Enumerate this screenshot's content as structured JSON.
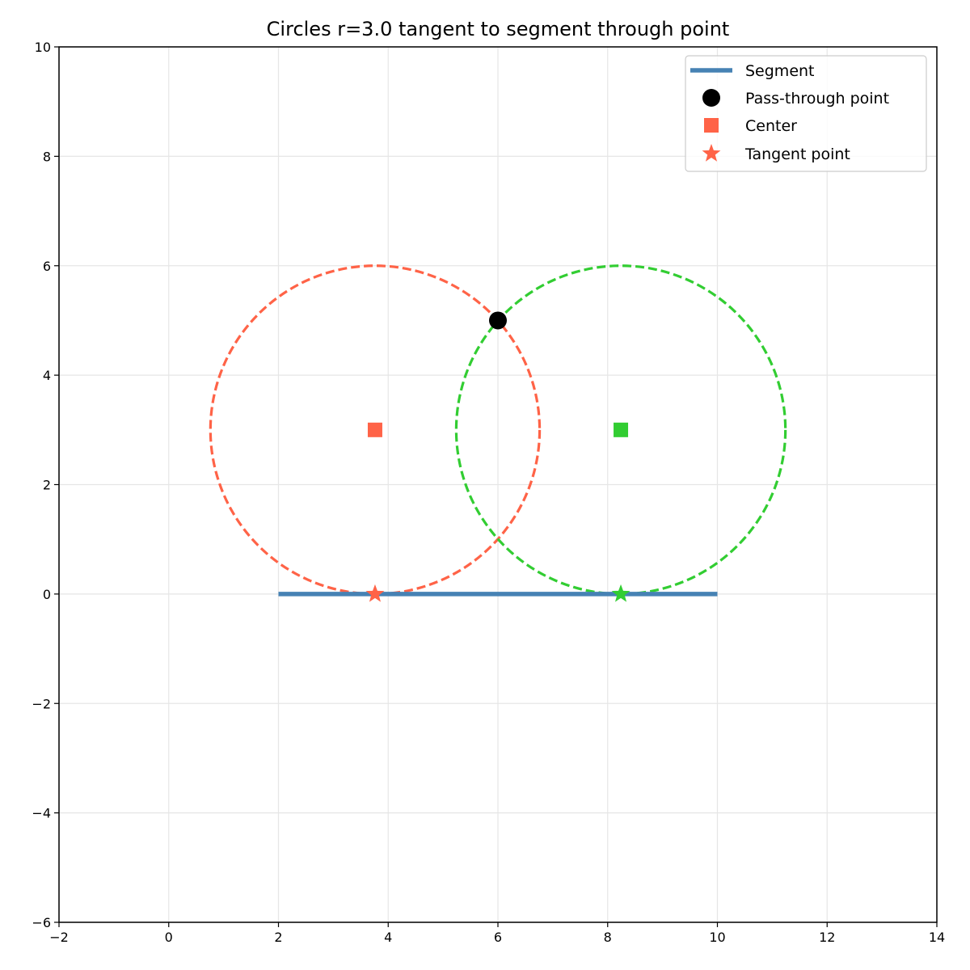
{
  "chart_data": {
    "type": "scatter",
    "title": "Circles r=3.0 tangent to segment through point",
    "xlabel": "",
    "ylabel": "",
    "xlim": [
      -2,
      14
    ],
    "ylim": [
      -6,
      10
    ],
    "xticks": [
      -2,
      0,
      2,
      4,
      6,
      8,
      10,
      12,
      14
    ],
    "yticks": [
      -6,
      -4,
      -2,
      0,
      2,
      4,
      6,
      8,
      10
    ],
    "grid": true,
    "aspect": "equal",
    "legend_position": "top-right",
    "legend": [
      "Segment",
      "Pass-through point",
      "Center",
      "Tangent point"
    ],
    "radius": 3.0,
    "segment": {
      "x": [
        2,
        10
      ],
      "y": [
        0,
        0
      ],
      "color": "#4682b4"
    },
    "pass_through_point": {
      "x": 6,
      "y": 5,
      "color": "#000000"
    },
    "circles": [
      {
        "center": [
          3.76,
          3
        ],
        "tangent_point": [
          3.76,
          0
        ],
        "color": "#ff6347",
        "linestyle": "dashed"
      },
      {
        "center": [
          8.24,
          3
        ],
        "tangent_point": [
          8.24,
          0
        ],
        "color": "#32cd32",
        "linestyle": "dashed"
      }
    ]
  }
}
